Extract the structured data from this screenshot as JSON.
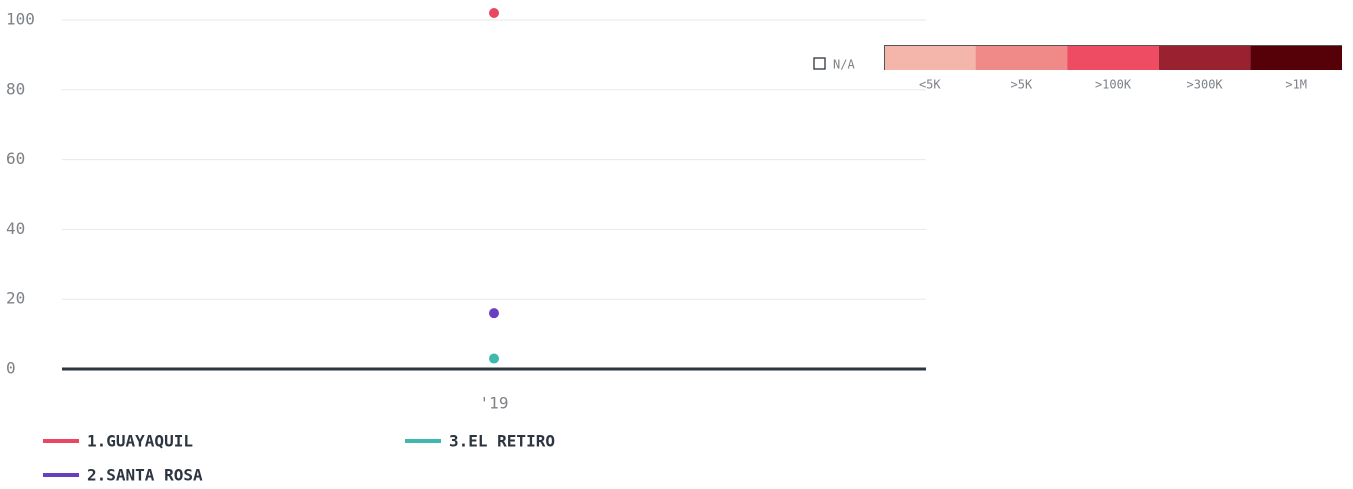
{
  "chart_data": {
    "type": "scatter",
    "categories": [
      "'19"
    ],
    "series": [
      {
        "name": "1.GUAYAQUIL",
        "color": "#e8475f",
        "values": [
          102
        ]
      },
      {
        "name": "2.SANTA ROSA",
        "color": "#6a3fbf",
        "values": [
          16
        ]
      },
      {
        "name": "3.EL RETIRO",
        "color": "#3fb8b0",
        "values": [
          3
        ]
      }
    ],
    "ylim": [
      0,
      102
    ],
    "yticks": [
      0,
      20,
      40,
      60,
      80,
      100
    ],
    "grid": true,
    "scale_legend": {
      "na_label": "N/A",
      "bins": [
        {
          "label": "<5K",
          "color": "#f4b6ab"
        },
        {
          "label": ">5K",
          "color": "#f08a88"
        },
        {
          "label": ">100K",
          "color": "#ee4c62"
        },
        {
          "label": ">300K",
          "color": "#9a2230"
        },
        {
          "label": ">1M",
          "color": "#560008"
        }
      ]
    }
  }
}
